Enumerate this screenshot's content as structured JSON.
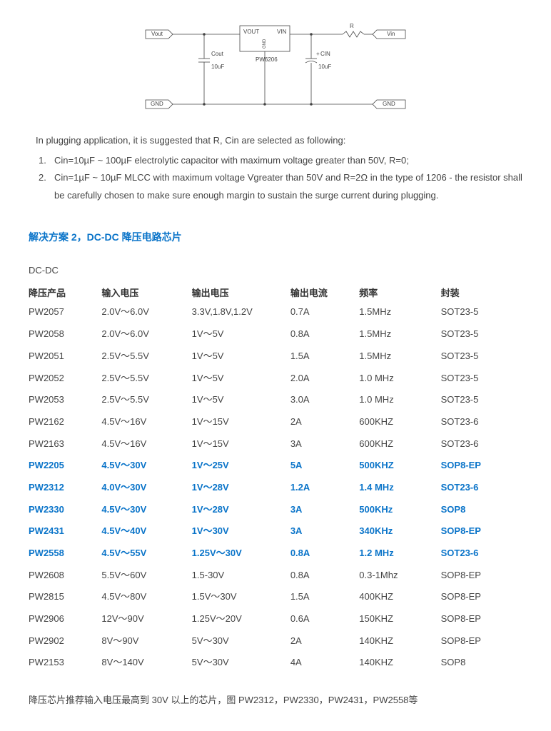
{
  "schematic": {
    "vout_label": "Vout",
    "vin_label": "Vin",
    "vout_pin": "VOUT",
    "vin_pin": "VIN",
    "gnd_pin": "GND",
    "chip_name": "PW6206",
    "cout_label": "Cout",
    "cout_val": "10uF",
    "cin_label": "CIN",
    "cin_val": "10uF",
    "cin_plus": "+",
    "r_label": "R",
    "gnd_left": "GND",
    "gnd_right": "GND"
  },
  "notes": {
    "intro": "In plugging application, it is suggested that R, Cin are selected as following:",
    "items": [
      "Cin=10µF ~ 100µF electrolytic capacitor with maximum voltage greater than 50V, R=0;",
      "Cin=1µF ~ 10µF MLCC with maximum voltage Vgreater than 50V and R=2Ω in the type of 1206 - the resistor shall be carefully chosen to make sure enough margin to sustain the surge current during plugging."
    ]
  },
  "section2": {
    "title": "解决方案 2，DC-DC 降压电路芯片",
    "pre": "DC-DC",
    "headers": [
      "降压产品",
      "输入电压",
      "输出电压",
      "输出电流",
      "频率",
      "封装"
    ],
    "rows": [
      [
        "PW2057",
        "2.0V～6.0V",
        "3.3V,1.8V,1.2V",
        "0.7A",
        "1.5MHz",
        "SOT23-5",
        false
      ],
      [
        "PW2058",
        "2.0V～6.0V",
        "1V～5V",
        "0.8A",
        "1.5MHz",
        "SOT23-5",
        false
      ],
      [
        "PW2051",
        "2.5V～5.5V",
        "1V～5V",
        "1.5A",
        "1.5MHz",
        "SOT23-5",
        false
      ],
      [
        "PW2052",
        "2.5V～5.5V",
        "1V～5V",
        "2.0A",
        "1.0 MHz",
        "SOT23-5",
        false
      ],
      [
        "PW2053",
        "2.5V～5.5V",
        "1V～5V",
        "3.0A",
        "1.0 MHz",
        "SOT23-5",
        false
      ],
      [
        "PW2162",
        "4.5V～16V",
        "1V～15V",
        "2A",
        "600KHZ",
        "SOT23-6",
        false
      ],
      [
        "PW2163",
        "4.5V～16V",
        "1V～15V",
        "3A",
        "600KHZ",
        "SOT23-6",
        false
      ],
      [
        "PW2205",
        "4.5V～30V",
        "1V～25V",
        "5A",
        "500KHZ",
        "SOP8-EP",
        true
      ],
      [
        "PW2312",
        "4.0V～30V",
        "1V～28V",
        "1.2A",
        "1.4 MHz",
        "SOT23-6",
        true
      ],
      [
        "PW2330",
        "4.5V～30V",
        "1V～28V",
        "3A",
        "500KHz",
        "SOP8",
        true
      ],
      [
        "PW2431",
        "4.5V～40V",
        "1V～30V",
        "3A",
        "340KHz",
        "SOP8-EP",
        true
      ],
      [
        "PW2558",
        "4.5V～55V",
        "1.25V～30V",
        "0.8A",
        "1.2 MHz",
        "SOT23-6",
        true
      ],
      [
        "PW2608",
        "5.5V～60V",
        "1.5-30V",
        "0.8A",
        "0.3-1Mhz",
        "SOP8-EP",
        false
      ],
      [
        "PW2815",
        "4.5V～80V",
        "1.5V～30V",
        "1.5A",
        "400KHZ",
        "SOP8-EP",
        false
      ],
      [
        "PW2906",
        "12V～90V",
        "1.25V～20V",
        "0.6A",
        "150KHZ",
        "SOP8-EP",
        false
      ],
      [
        "PW2902",
        "8V～90V",
        "5V～30V",
        "2A",
        "140KHZ",
        "SOP8-EP",
        false
      ],
      [
        "PW2153",
        "8V～140V",
        "5V～30V",
        "4A",
        "140KHZ",
        "SOP8",
        false
      ]
    ],
    "footnote": "降压芯片推荐输入电压最高到 30V 以上的芯片，图 PW2312，PW2330，PW2431，PW2558等"
  }
}
